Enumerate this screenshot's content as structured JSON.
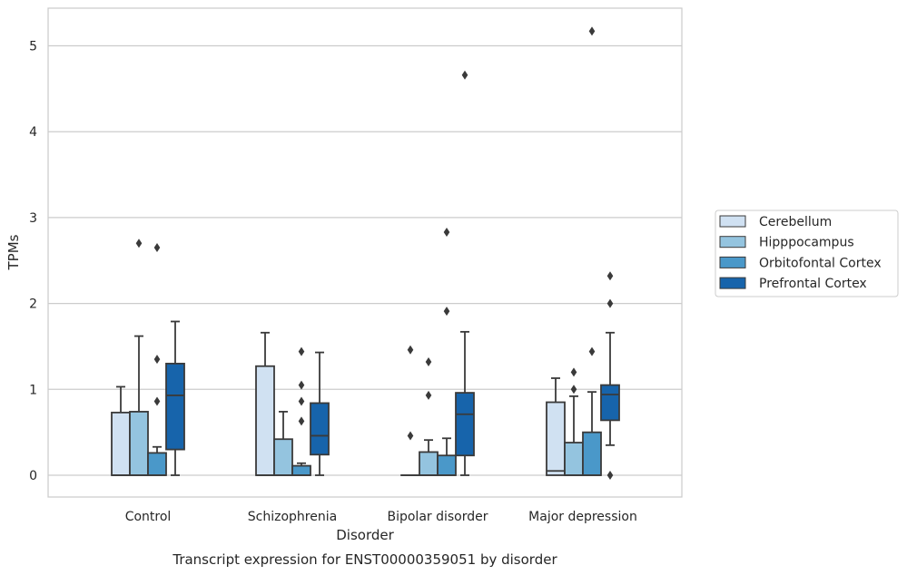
{
  "chart_data": {
    "type": "box",
    "title": "",
    "caption": "Transcript expression for ENST00000359051 by disorder",
    "xlabel": "Disorder",
    "ylabel": "TPMs",
    "ylim": [
      -0.25,
      5.45
    ],
    "yticks": [
      0,
      1,
      2,
      3,
      4,
      5
    ],
    "grid": "horizontal",
    "legend_position": "right",
    "categories": [
      "Control",
      "Schizophrenia",
      "Bipolar disorder",
      "Major depression"
    ],
    "series": [
      {
        "name": "Cerebellum",
        "color": "#d0e1f2",
        "boxes": [
          {
            "q1": 0,
            "median": 0,
            "q3": 0.73,
            "whisker_low": 0,
            "whisker_high": 1.03,
            "outliers": []
          },
          {
            "q1": 0,
            "median": 0,
            "q3": 1.27,
            "whisker_low": 0,
            "whisker_high": 1.66,
            "outliers": []
          },
          {
            "q1": 0,
            "median": 0,
            "q3": 0,
            "whisker_low": 0,
            "whisker_high": 0,
            "outliers": [
              1.46,
              0.46
            ]
          },
          {
            "q1": 0,
            "median": 0.05,
            "q3": 0.85,
            "whisker_low": 0,
            "whisker_high": 1.13,
            "outliers": []
          }
        ]
      },
      {
        "name": "Hipppocampus",
        "color": "#94c4df",
        "boxes": [
          {
            "q1": 0,
            "median": 0,
            "q3": 0.74,
            "whisker_low": 0,
            "whisker_high": 1.62,
            "outliers": [
              2.7
            ]
          },
          {
            "q1": 0,
            "median": 0,
            "q3": 0.42,
            "whisker_low": 0,
            "whisker_high": 0.74,
            "outliers": []
          },
          {
            "q1": 0,
            "median": 0,
            "q3": 0.27,
            "whisker_low": 0,
            "whisker_high": 0.41,
            "outliers": [
              1.32,
              0.93
            ]
          },
          {
            "q1": 0,
            "median": 0,
            "q3": 0.38,
            "whisker_low": 0,
            "whisker_high": 0.92,
            "outliers": [
              1.2,
              1.0
            ]
          }
        ]
      },
      {
        "name": "Orbitofontal Cortex",
        "color": "#4a98c9",
        "boxes": [
          {
            "q1": 0,
            "median": 0,
            "q3": 0.26,
            "whisker_low": 0,
            "whisker_high": 0.33,
            "outliers": [
              2.65,
              1.35,
              0.86
            ]
          },
          {
            "q1": 0,
            "median": 0,
            "q3": 0.11,
            "whisker_low": 0,
            "whisker_high": 0.14,
            "outliers": [
              1.44,
              1.05,
              0.86,
              0.63
            ]
          },
          {
            "q1": 0,
            "median": 0,
            "q3": 0.23,
            "whisker_low": 0,
            "whisker_high": 0.43,
            "outliers": [
              2.83,
              1.91
            ]
          },
          {
            "q1": 0,
            "median": 0,
            "q3": 0.5,
            "whisker_low": 0,
            "whisker_high": 0.97,
            "outliers": [
              5.17,
              1.44
            ]
          }
        ]
      },
      {
        "name": "Prefrontal Cortex",
        "color": "#1764ab",
        "boxes": [
          {
            "q1": 0.3,
            "median": 0.93,
            "q3": 1.3,
            "whisker_low": 0,
            "whisker_high": 1.79,
            "outliers": []
          },
          {
            "q1": 0.24,
            "median": 0.46,
            "q3": 0.84,
            "whisker_low": 0,
            "whisker_high": 1.43,
            "outliers": []
          },
          {
            "q1": 0.23,
            "median": 0.71,
            "q3": 0.96,
            "whisker_low": 0,
            "whisker_high": 1.67,
            "outliers": [
              4.66
            ]
          },
          {
            "q1": 0.64,
            "median": 0.94,
            "q3": 1.05,
            "whisker_low": 0.35,
            "whisker_high": 1.66,
            "outliers": [
              2.32,
              2.0,
              0
            ]
          }
        ]
      }
    ]
  }
}
